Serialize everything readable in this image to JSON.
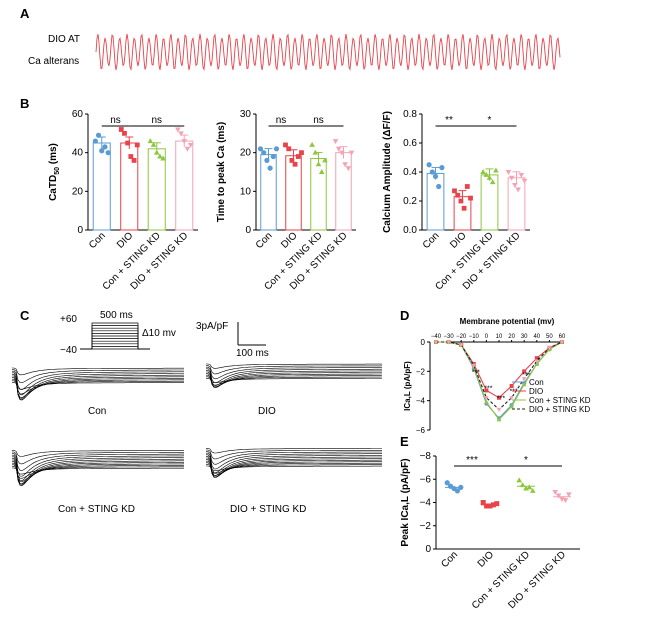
{
  "panels": {
    "A": "A",
    "B": "B",
    "C": "C",
    "D": "D",
    "E": "E"
  },
  "panelA": {
    "label1": "DIO AT",
    "label2": "Ca alterans",
    "trace_color": "#e8424a"
  },
  "groups": [
    "Con",
    "DIO",
    "Con + STING KD",
    "DIO + STING KD"
  ],
  "colors": {
    "Con": "#5b9bd5",
    "DIO": "#e8424a",
    "Con + STING KD": "#8dc63f",
    "DIO + STING KD": "#f4a3b4",
    "fit_DIO_STING": "#222222"
  },
  "panelC": {
    "v_high": "+60",
    "v_low": "−40",
    "duration": "500 ms",
    "step": "Δ10 mv",
    "scale_y": "3pA/pF",
    "scale_x": "100 ms",
    "labels": [
      "Con",
      "DIO",
      "Con + STING KD",
      "DIO + STING KD"
    ]
  },
  "chart_data": [
    {
      "type": "bar",
      "panel": "B1",
      "ylabel": "CaTD50 (ms)",
      "ylabel_main": "CaTD",
      "ylabel_sub": "50",
      "ylabel_unit": " (ms)",
      "ylim": [
        0,
        60
      ],
      "yticks": [
        "0",
        "20",
        "40",
        "60"
      ],
      "categories": [
        "Con",
        "DIO",
        "Con + STING KD",
        "DIO + STING KD"
      ],
      "values": [
        45,
        45,
        42,
        46
      ],
      "sig": [
        "ns",
        "ns"
      ],
      "points": [
        [
          46,
          49,
          41,
          43,
          40
        ],
        [
          52,
          50,
          45,
          38,
          36,
          44
        ],
        [
          46,
          44,
          40,
          38,
          37
        ],
        [
          52,
          50,
          46,
          42,
          44
        ]
      ]
    },
    {
      "type": "bar",
      "panel": "B2",
      "ylabel": "Time to peak Ca (ms)",
      "ylim": [
        0,
        30
      ],
      "yticks": [
        "0",
        "10",
        "20",
        "30"
      ],
      "categories": [
        "Con",
        "DIO",
        "Con + STING KD",
        "DIO + STING KD"
      ],
      "values": [
        19.5,
        19.2,
        18.5,
        20
      ],
      "sig": [
        "ns",
        "ns"
      ],
      "points": [
        [
          21,
          20,
          18,
          16,
          19,
          21
        ],
        [
          22,
          21,
          18,
          17,
          19,
          20
        ],
        [
          22,
          20,
          17,
          15,
          18
        ],
        [
          23,
          21,
          20,
          17,
          16,
          20
        ]
      ]
    },
    {
      "type": "bar",
      "panel": "B3",
      "ylabel": "Calcium Amplitude (ΔF/F)",
      "ylim": [
        0,
        0.8
      ],
      "yticks": [
        "0.0",
        "0.2",
        "0.4",
        "0.6",
        "0.8"
      ],
      "categories": [
        "Con",
        "DIO",
        "Con + STING KD",
        "DIO + STING KD"
      ],
      "values": [
        0.39,
        0.23,
        0.38,
        0.36
      ],
      "sig": [
        "**",
        "*"
      ],
      "points": [
        [
          0.45,
          0.4,
          0.37,
          0.3,
          0.43
        ],
        [
          0.27,
          0.24,
          0.2,
          0.15,
          0.3,
          0.22
        ],
        [
          0.4,
          0.38,
          0.36,
          0.33,
          0.41
        ],
        [
          0.4,
          0.36,
          0.31,
          0.28,
          0.38,
          0.34
        ]
      ]
    },
    {
      "type": "line",
      "panel": "D",
      "title": "Membrane potential (mv)",
      "ylabel": "ICa,L (pA/pF)",
      "x": [
        -40,
        -30,
        -20,
        -10,
        0,
        10,
        20,
        30,
        40,
        50,
        60
      ],
      "xticks": [
        "−40",
        "−30",
        "−20",
        "−10",
        "0",
        "10",
        "20",
        "30",
        "40",
        "50",
        "60"
      ],
      "ylim": [
        -6,
        0
      ],
      "yticks": [
        "0",
        "−2",
        "−4",
        "−6"
      ],
      "series": [
        {
          "name": "Con",
          "values": [
            0,
            0,
            -0.2,
            -1.8,
            -4.2,
            -5.2,
            -4.3,
            -2.8,
            -1.5,
            -0.5,
            0
          ]
        },
        {
          "name": "DIO",
          "values": [
            0,
            0,
            -0.2,
            -1.5,
            -3.3,
            -3.8,
            -3.0,
            -2.0,
            -1.1,
            -0.4,
            0
          ]
        },
        {
          "name": "Con + STING KD",
          "values": [
            0,
            0,
            -0.2,
            -1.7,
            -4.1,
            -5.3,
            -4.4,
            -2.9,
            -1.5,
            -0.5,
            0
          ]
        },
        {
          "name": "DIO + STING KD",
          "values": [
            0,
            0,
            -0.2,
            -1.6,
            -3.8,
            -4.6,
            -3.8,
            -2.5,
            -1.3,
            -0.4,
            0
          ]
        }
      ],
      "sig": [
        "***",
        "***",
        "***",
        "***",
        "***",
        "*"
      ]
    },
    {
      "type": "scatter",
      "panel": "E",
      "ylabel": "Peak ICa,L (pA/pF)",
      "ylim": [
        -8,
        0
      ],
      "yticks": [
        "−8",
        "−6",
        "−4",
        "−2",
        "0"
      ],
      "categories": [
        "Con",
        "DIO",
        "Con + STING KD",
        "DIO + STING KD"
      ],
      "means": [
        -5.3,
        -3.8,
        -5.4,
        -4.5
      ],
      "points": [
        [
          -5.7,
          -5.4,
          -5.2,
          -5.0,
          -5.3
        ],
        [
          -4.0,
          -3.7,
          -3.7,
          -3.8,
          -3.9
        ],
        [
          -5.9,
          -5.5,
          -5.2,
          -5.3,
          -5.0
        ],
        [
          -4.9,
          -4.6,
          -4.3,
          -4.2,
          -4.7
        ]
      ],
      "sig": [
        "***",
        "*"
      ]
    }
  ]
}
